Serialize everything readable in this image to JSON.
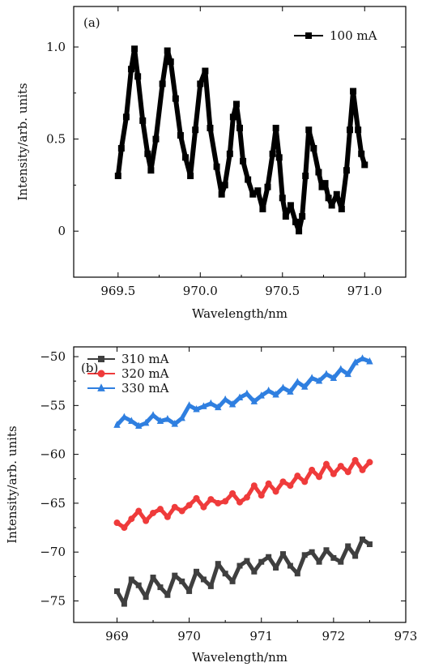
{
  "chart_data": [
    {
      "panel_label": "(a)",
      "type": "line",
      "xlabel": "Wavelength/nm",
      "ylabel": "Intensity/arb. units",
      "xlim": [
        969.23,
        971.25
      ],
      "ylim": [
        -0.25,
        1.22
      ],
      "xticks": [
        969.5,
        970.0,
        970.5,
        971.0
      ],
      "xtick_labels": [
        "969.5",
        "970.0",
        "970.5",
        "971.0"
      ],
      "yticks": [
        0,
        0.5,
        1.0
      ],
      "ytick_labels": [
        "0",
        "0.5",
        "1.0"
      ],
      "legend_position": "top-right",
      "grid": false,
      "series": [
        {
          "name": "100 mA",
          "color": "#000000",
          "marker": "square",
          "x": [
            969.5,
            969.52,
            969.55,
            969.58,
            969.6,
            969.62,
            969.65,
            969.68,
            969.7,
            969.73,
            969.77,
            969.8,
            969.82,
            969.85,
            969.88,
            969.91,
            969.94,
            969.97,
            970.0,
            970.03,
            970.06,
            970.1,
            970.13,
            970.15,
            970.18,
            970.2,
            970.22,
            970.24,
            970.26,
            970.29,
            970.32,
            970.35,
            970.38,
            970.41,
            970.44,
            970.46,
            970.48,
            970.5,
            970.52,
            970.55,
            970.58,
            970.6,
            970.62,
            970.64,
            970.66,
            970.69,
            970.72,
            970.74,
            970.76,
            970.78,
            970.8,
            970.83,
            970.86,
            970.89,
            970.91,
            970.93,
            970.96,
            970.98,
            971.0
          ],
          "y": [
            0.3,
            0.45,
            0.62,
            0.88,
            0.99,
            0.84,
            0.6,
            0.42,
            0.33,
            0.5,
            0.8,
            0.98,
            0.92,
            0.72,
            0.52,
            0.4,
            0.3,
            0.55,
            0.8,
            0.87,
            0.56,
            0.35,
            0.2,
            0.25,
            0.42,
            0.62,
            0.69,
            0.56,
            0.38,
            0.28,
            0.2,
            0.22,
            0.12,
            0.24,
            0.42,
            0.56,
            0.4,
            0.18,
            0.08,
            0.14,
            0.05,
            0.0,
            0.08,
            0.3,
            0.55,
            0.45,
            0.32,
            0.24,
            0.26,
            0.18,
            0.14,
            0.2,
            0.12,
            0.33,
            0.55,
            0.76,
            0.55,
            0.42,
            0.36
          ]
        }
      ]
    },
    {
      "panel_label": "(b)",
      "type": "line",
      "xlabel": "Wavelength/nm",
      "ylabel": "Intensity/arb. units",
      "xlim": [
        968.4,
        973.0
      ],
      "ylim": [
        -77.2,
        -49.0
      ],
      "xticks": [
        969,
        970,
        971,
        972,
        973
      ],
      "xtick_labels": [
        "969",
        "970",
        "971",
        "972",
        "973"
      ],
      "yticks": [
        -75,
        -70,
        -65,
        -60,
        -55,
        -50
      ],
      "ytick_labels": [
        "−75",
        "−70",
        "−65",
        "−60",
        "−55",
        "−50"
      ],
      "legend_position": "top-left",
      "grid": false,
      "series": [
        {
          "name": "310 mA",
          "color": "#3f3f3f",
          "marker": "square",
          "x": [
            969.0,
            969.1,
            969.2,
            969.3,
            969.4,
            969.5,
            969.6,
            969.7,
            969.8,
            969.9,
            970.0,
            970.1,
            970.2,
            970.3,
            970.4,
            970.5,
            970.6,
            970.7,
            970.8,
            970.9,
            971.0,
            971.1,
            971.2,
            971.3,
            971.4,
            971.5,
            971.6,
            971.7,
            971.8,
            971.9,
            972.0,
            972.1,
            972.2,
            972.3,
            972.4,
            972.5
          ],
          "y": [
            -74.0,
            -75.3,
            -72.8,
            -73.4,
            -74.6,
            -72.6,
            -73.6,
            -74.4,
            -72.4,
            -73.0,
            -74.0,
            -72.0,
            -72.8,
            -73.5,
            -71.2,
            -72.2,
            -73.0,
            -71.4,
            -70.9,
            -72.0,
            -71.0,
            -70.5,
            -71.6,
            -70.2,
            -71.4,
            -72.2,
            -70.3,
            -70.0,
            -71.0,
            -69.8,
            -70.6,
            -71.0,
            -69.4,
            -70.4,
            -68.7,
            -69.2
          ]
        },
        {
          "name": "320 mA",
          "color": "#ef3b3b",
          "marker": "circle",
          "x": [
            969.0,
            969.1,
            969.2,
            969.3,
            969.4,
            969.5,
            969.6,
            969.7,
            969.8,
            969.9,
            970.0,
            970.1,
            970.2,
            970.3,
            970.4,
            970.5,
            970.6,
            970.7,
            970.8,
            970.9,
            971.0,
            971.1,
            971.2,
            971.3,
            971.4,
            971.5,
            971.6,
            971.7,
            971.8,
            971.9,
            972.0,
            972.1,
            972.2,
            972.3,
            972.4,
            972.5
          ],
          "y": [
            -67.0,
            -67.5,
            -66.6,
            -65.8,
            -66.8,
            -66.0,
            -65.6,
            -66.4,
            -65.4,
            -65.8,
            -65.2,
            -64.5,
            -65.4,
            -64.6,
            -65.0,
            -64.8,
            -64.0,
            -64.9,
            -64.4,
            -63.2,
            -64.2,
            -63.0,
            -63.8,
            -62.8,
            -63.2,
            -62.2,
            -62.8,
            -61.6,
            -62.3,
            -61.0,
            -62.0,
            -61.2,
            -61.8,
            -60.6,
            -61.6,
            -60.8
          ]
        },
        {
          "name": "330 mA",
          "color": "#2f7fe0",
          "marker": "triangle",
          "x": [
            969.0,
            969.1,
            969.2,
            969.3,
            969.4,
            969.5,
            969.6,
            969.7,
            969.8,
            969.9,
            970.0,
            970.1,
            970.2,
            970.3,
            970.4,
            970.5,
            970.6,
            970.7,
            970.8,
            970.9,
            971.0,
            971.1,
            971.2,
            971.3,
            971.4,
            971.5,
            971.6,
            971.7,
            971.8,
            971.9,
            972.0,
            972.1,
            972.2,
            972.3,
            972.4,
            972.5
          ],
          "y": [
            -57.0,
            -56.2,
            -56.6,
            -57.1,
            -56.8,
            -56.0,
            -56.6,
            -56.4,
            -56.9,
            -56.3,
            -55.0,
            -55.4,
            -55.1,
            -54.8,
            -55.2,
            -54.4,
            -54.9,
            -54.2,
            -53.8,
            -54.6,
            -54.0,
            -53.5,
            -53.9,
            -53.2,
            -53.6,
            -52.6,
            -53.1,
            -52.2,
            -52.5,
            -51.8,
            -52.2,
            -51.3,
            -51.8,
            -50.6,
            -50.2,
            -50.5
          ]
        }
      ]
    }
  ]
}
